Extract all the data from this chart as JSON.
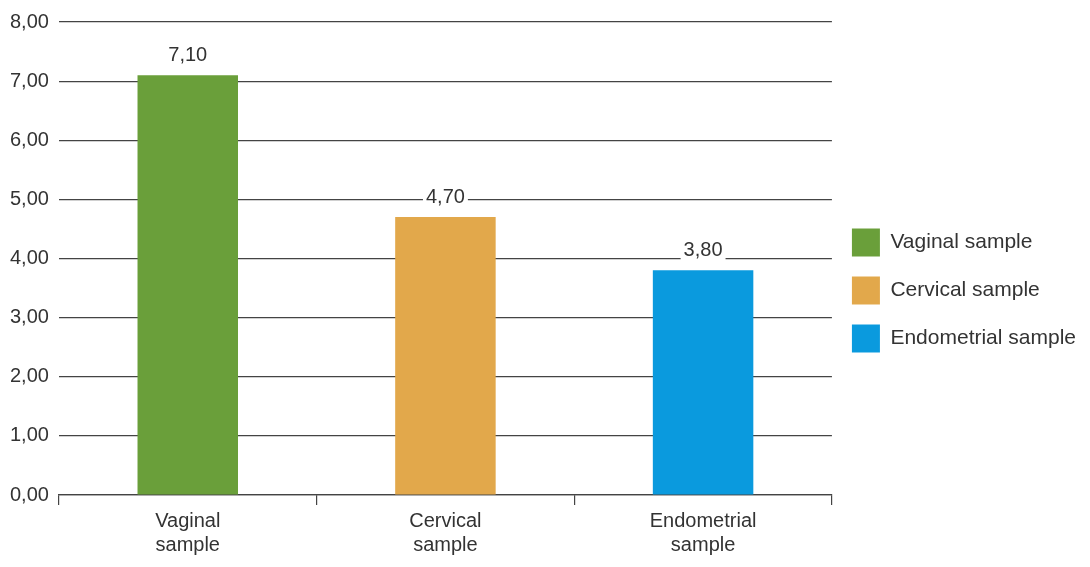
{
  "chart_data": {
    "type": "bar",
    "categories": [
      "Vaginal sample",
      "Cervical sample",
      "Endometrial sample"
    ],
    "series": [
      {
        "name": "Vaginal sample",
        "color": "#6a9f3a",
        "values": [
          7.1,
          null,
          null
        ],
        "value_labels": [
          "7,10",
          null,
          null
        ]
      },
      {
        "name": "Cervical sample",
        "color": "#e2a84b",
        "values": [
          null,
          4.7,
          null
        ],
        "value_labels": [
          null,
          "4,70",
          null
        ]
      },
      {
        "name": "Endometrial sample",
        "color": "#0a9ade",
        "values": [
          null,
          null,
          3.8
        ],
        "value_labels": [
          null,
          null,
          "3,80"
        ]
      }
    ],
    "ylim": [
      0,
      8
    ],
    "yticks": [
      {
        "value": 0,
        "label": "0,00"
      },
      {
        "value": 1,
        "label": "1,00"
      },
      {
        "value": 2,
        "label": "2,00"
      },
      {
        "value": 3,
        "label": "3,00"
      },
      {
        "value": 4,
        "label": "4,00"
      },
      {
        "value": 5,
        "label": "5,00"
      },
      {
        "value": 6,
        "label": "6,00"
      },
      {
        "value": 7,
        "label": "7,00"
      },
      {
        "value": 8,
        "label": "8,00"
      }
    ],
    "grid": "y",
    "legend": "right"
  }
}
